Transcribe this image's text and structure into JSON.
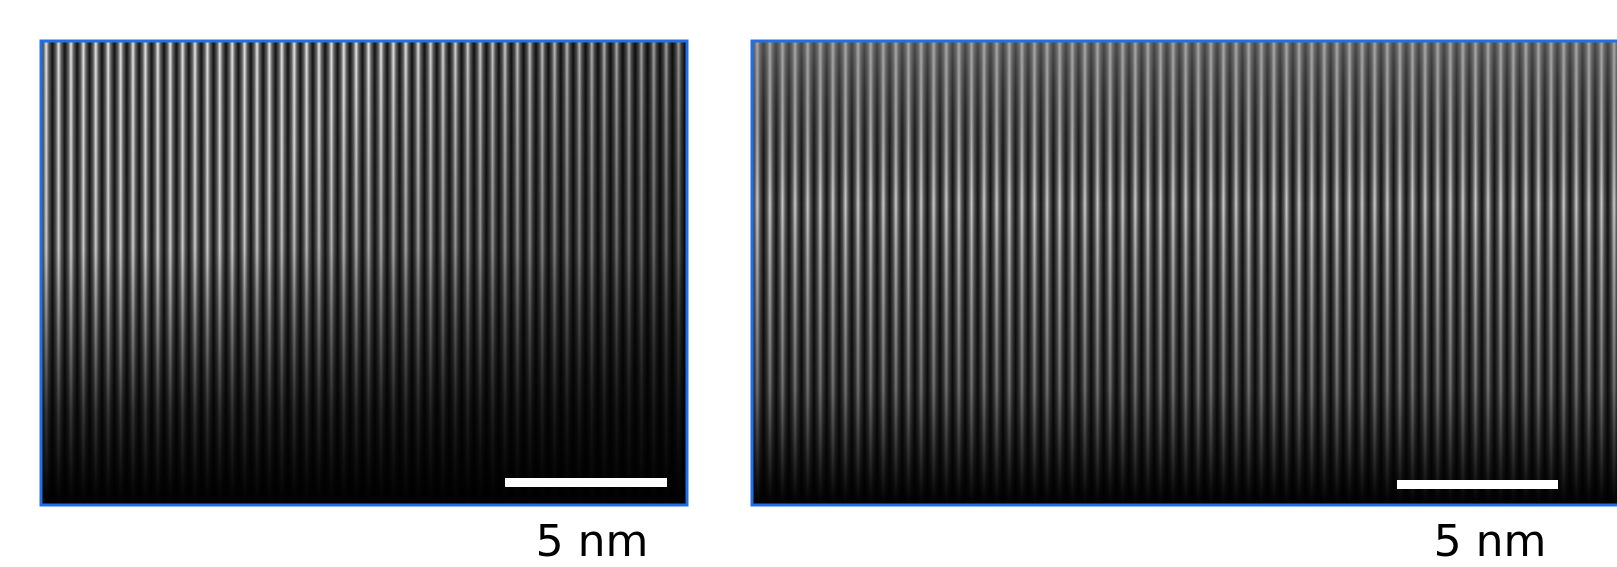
{
  "panels": [
    {
      "scale_label": "5 nm"
    },
    {
      "scale_label": "5 nm"
    }
  ]
}
